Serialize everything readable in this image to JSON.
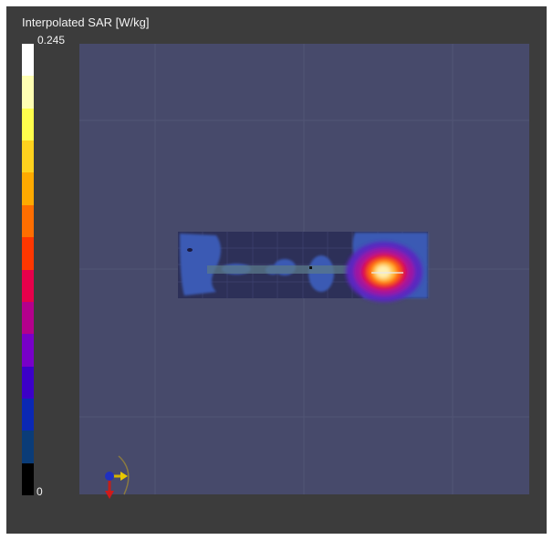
{
  "legend": {
    "title": "Interpolated SAR [W/kg]",
    "max_label": "0.245",
    "min_label": "0",
    "scale_max": 0.245,
    "scale_min": 0,
    "colors_top_to_bottom": [
      "#ffffff",
      "#ffffb3",
      "#ffff4d",
      "#ffd21e",
      "#ffaa00",
      "#ff6e00",
      "#ff3700",
      "#e6004b",
      "#b4008c",
      "#7800c8",
      "#3c00c8",
      "#0a28b4",
      "#0a3c78",
      "#000000"
    ]
  },
  "scene": {
    "background": "#474a6b",
    "plate_color": "#2d3058",
    "low_sar_color": "#3a5ab4",
    "hotspot_colors": [
      "#5a28c0",
      "#a014a0",
      "#e0103c",
      "#ff6400",
      "#ffc040",
      "#fff0b0"
    ],
    "axes_icons": [
      "x-axis-arrow-icon",
      "y-axis-arrow-icon",
      "z-axis-arrow-icon",
      "rotation-ring-icon"
    ]
  }
}
